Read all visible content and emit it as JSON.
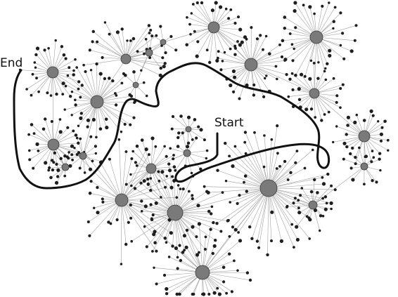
{
  "labels": {
    "start": "Start",
    "end": "End"
  },
  "colors": {
    "hub_fill": "#7a7a7a",
    "leaf_fill": "#1e1e1e",
    "edge": "#9a9a9a",
    "path": "#111111"
  }
}
